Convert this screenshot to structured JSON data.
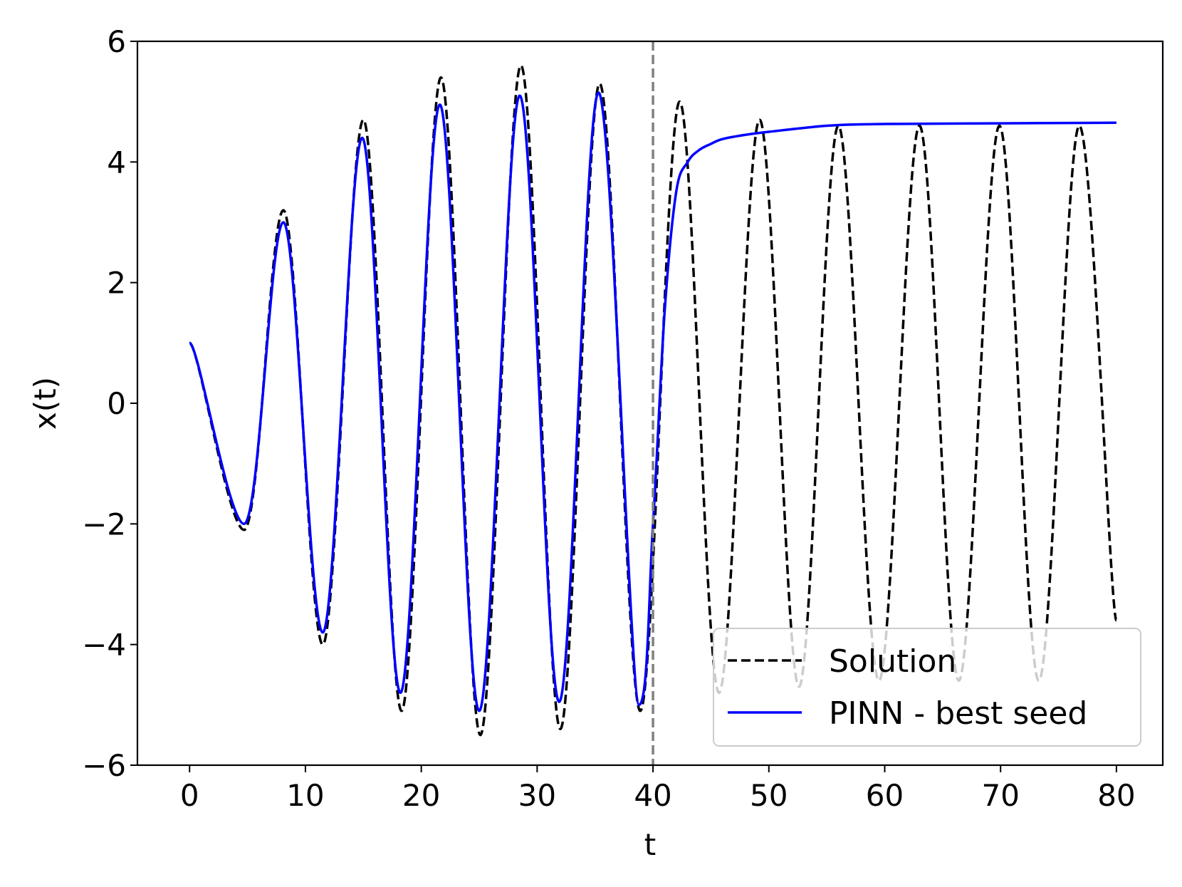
{
  "chart_data": {
    "type": "line",
    "title": "",
    "xlabel": "t",
    "ylabel": "x(t)",
    "xlim": [
      -4.5,
      84.0
    ],
    "ylim": [
      -6,
      6
    ],
    "xticks": [
      0,
      10,
      20,
      30,
      40,
      50,
      60,
      70,
      80
    ],
    "xtick_labels": [
      "0",
      "10",
      "20",
      "30",
      "40",
      "50",
      "60",
      "70",
      "80"
    ],
    "yticks": [
      6,
      4,
      2,
      0,
      -2,
      -4,
      -6
    ],
    "ytick_labels": [
      "6",
      "4",
      "2",
      "0",
      "−2",
      "−4",
      "−6"
    ],
    "grid": false,
    "legend_position": "bottom-right",
    "vline": {
      "x": 40,
      "style": "dashed",
      "color": "#808080"
    },
    "series": [
      {
        "name": "Solution",
        "style": "dashed",
        "color": "#000000",
        "x": [
          0,
          4.7,
          8.1,
          11.5,
          15.0,
          18.3,
          21.7,
          25.1,
          28.6,
          32.0,
          35.4,
          38.9,
          42.3,
          45.7,
          49.2,
          52.6,
          56.0,
          59.5,
          63.0,
          66.4,
          69.9,
          73.3,
          76.8,
          80.0
        ],
        "values": [
          1.0,
          -2.1,
          3.2,
          -4.0,
          4.7,
          -5.1,
          5.4,
          -5.5,
          5.6,
          -5.4,
          5.3,
          -5.1,
          5.0,
          -4.8,
          4.7,
          -4.7,
          4.6,
          -4.6,
          4.6,
          -4.6,
          4.6,
          -4.6,
          4.6,
          -3.6
        ]
      },
      {
        "name": "PINN - best seed",
        "style": "solid",
        "color": "#0000ff",
        "x": [
          0,
          4.7,
          8.1,
          11.5,
          14.9,
          18.2,
          21.6,
          25.0,
          28.5,
          31.9,
          35.3,
          38.8,
          40.0,
          41.0,
          42.0,
          43.0,
          44.0,
          45.0,
          46.0,
          48.0,
          50.0,
          55.0,
          60.0,
          70.0,
          80.0
        ],
        "values": [
          1.0,
          -2.0,
          3.0,
          -3.8,
          4.4,
          -4.8,
          4.95,
          -5.1,
          5.1,
          -4.95,
          5.15,
          -5.0,
          -2.0,
          1.5,
          3.5,
          4.0,
          4.2,
          4.3,
          4.38,
          4.45,
          4.5,
          4.6,
          4.63,
          4.64,
          4.65
        ]
      }
    ]
  }
}
